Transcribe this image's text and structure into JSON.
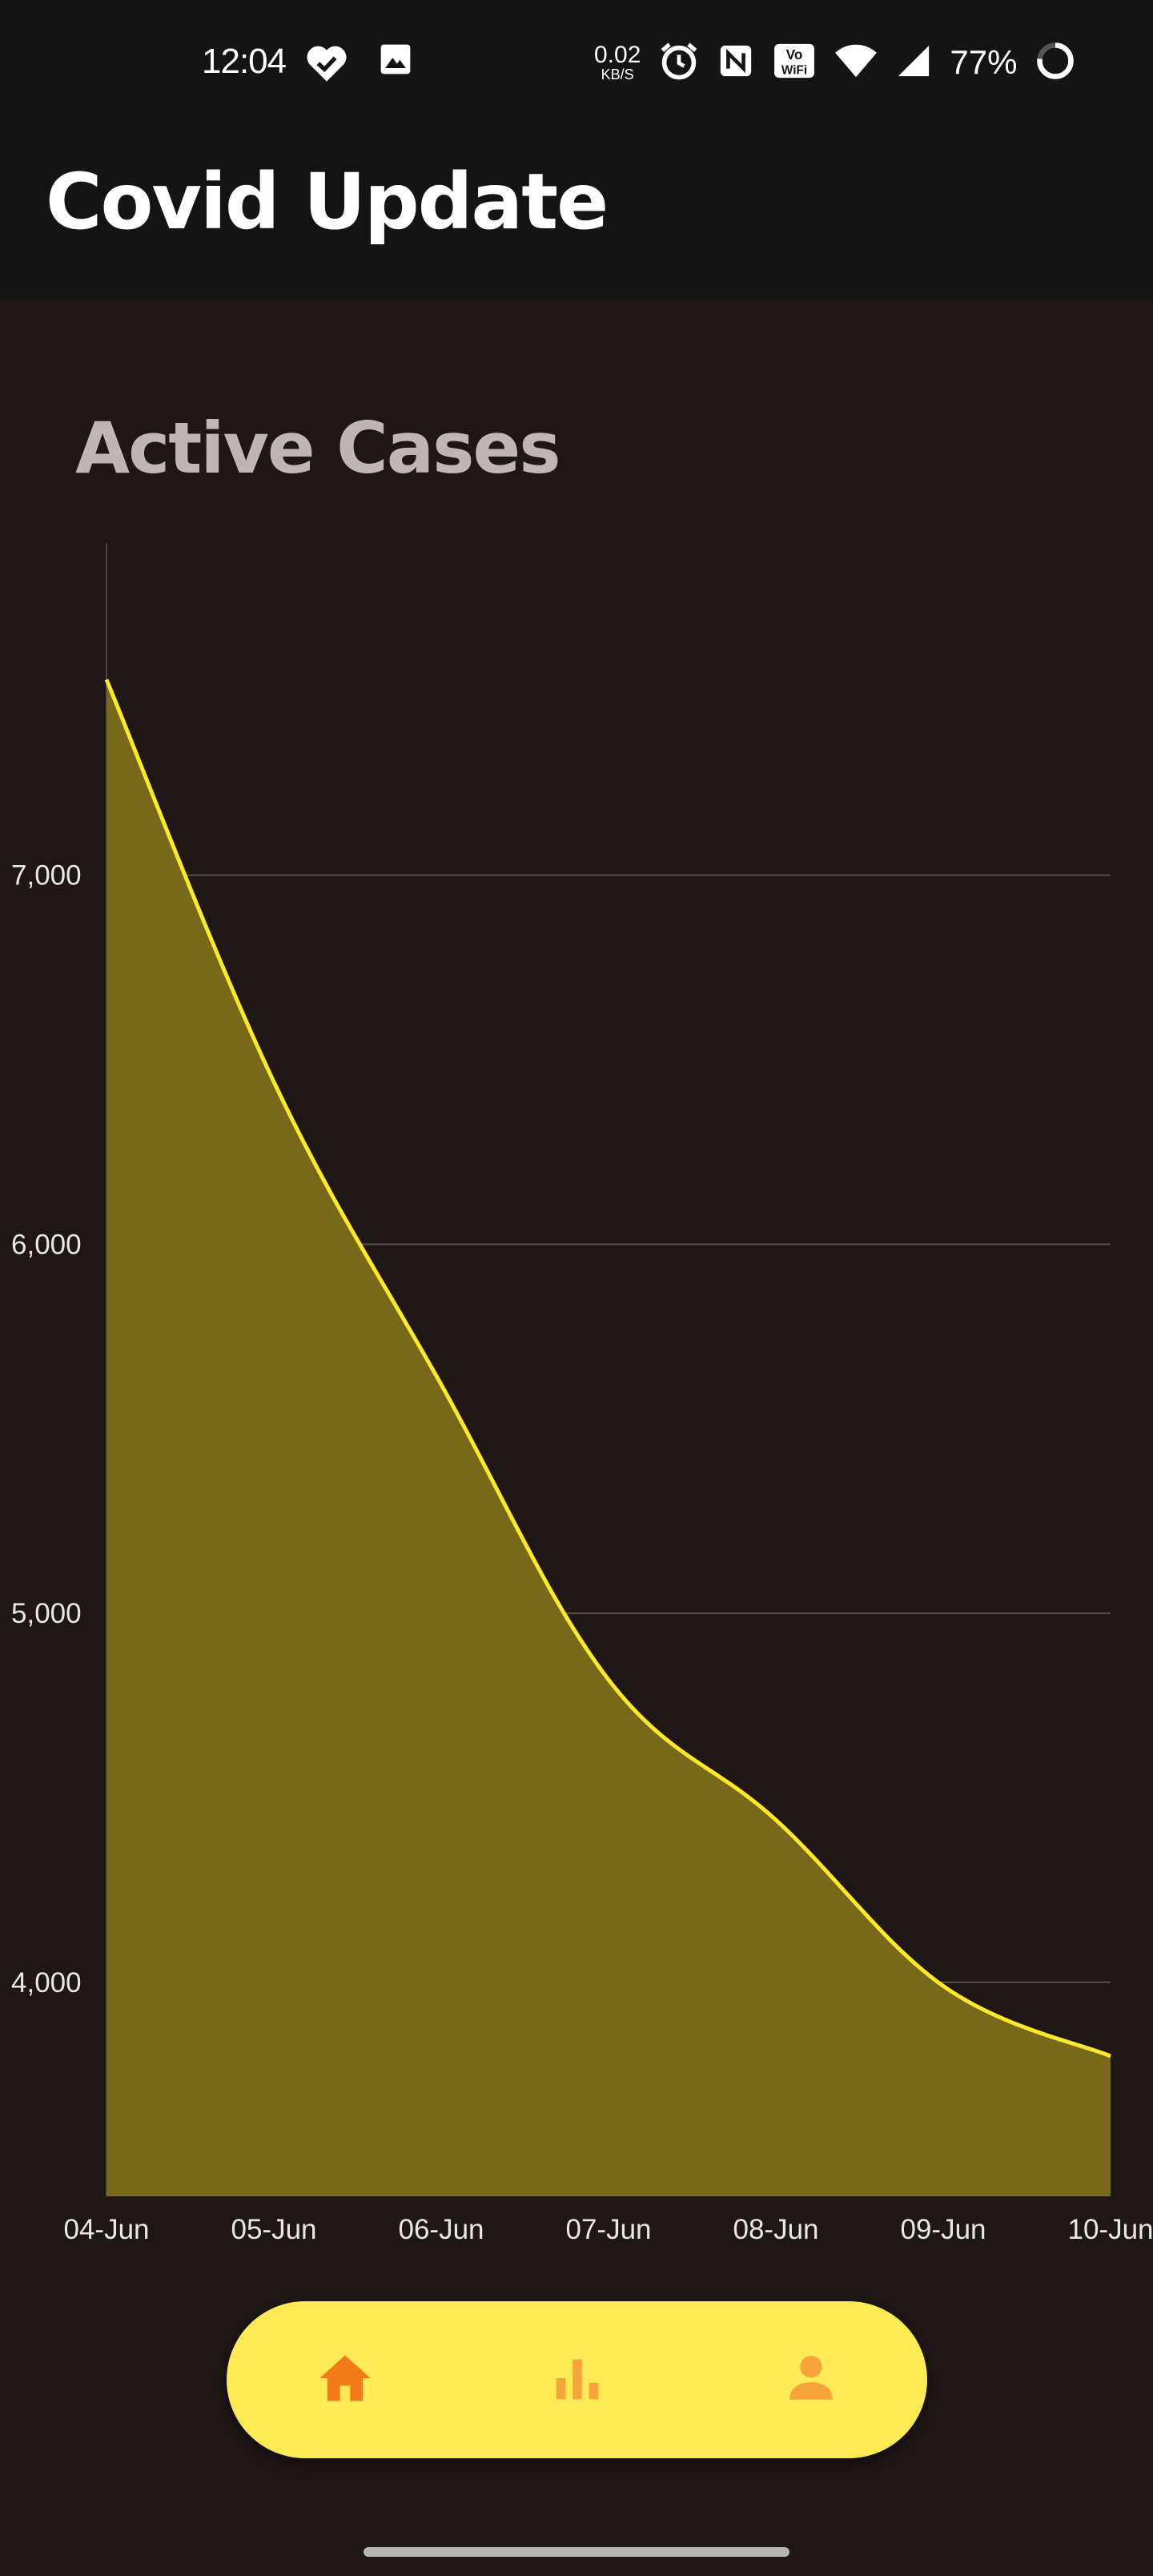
{
  "status_bar": {
    "time": "12:04",
    "left_icons": [
      "heart-check-icon",
      "image-icon"
    ],
    "net_speed_value": "0.02",
    "net_speed_unit": "KB/S",
    "right_icons": [
      "alarm-icon",
      "nfc-icon",
      "vowifi-icon",
      "wifi-icon",
      "cell-signal-icon"
    ],
    "battery": "77%"
  },
  "header": {
    "title": "Covid Update"
  },
  "card": {
    "title": "Active Cases"
  },
  "chart_data": {
    "type": "area",
    "title": "Active Cases",
    "x": [
      "04-Jun",
      "05-Jun",
      "06-Jun",
      "07-Jun",
      "08-Jun",
      "09-Jun",
      "10-Jun"
    ],
    "values": [
      7530,
      6440,
      5620,
      4820,
      4440,
      3990,
      3800
    ],
    "y_ticks": [
      "7,000",
      "6,000",
      "5,000",
      "4,000"
    ],
    "y_tick_values": [
      7000,
      6000,
      5000,
      4000
    ],
    "ylim": [
      3420,
      7900
    ],
    "grid": "horizontal",
    "colors": {
      "line": "#fde82a",
      "fill": "#77681a",
      "grid": "#555047",
      "axis_text": "#e8e8e8"
    }
  },
  "bottom_nav": {
    "items": [
      {
        "name": "home",
        "icon": "home-icon",
        "active": true
      },
      {
        "name": "stats",
        "icon": "bar-chart-icon",
        "active": false
      },
      {
        "name": "profile",
        "icon": "person-icon",
        "active": false
      }
    ],
    "colors": {
      "pill": "#fdea55",
      "active_icon": "#f27a19",
      "inactive_icon": "#f7a53b"
    }
  }
}
